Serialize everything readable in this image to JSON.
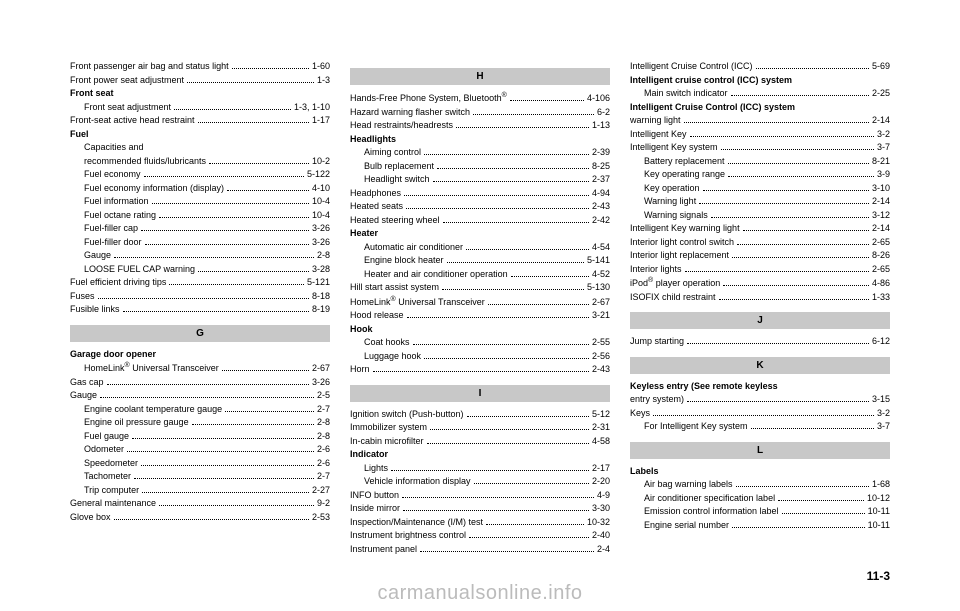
{
  "col1": {
    "topEntries": [
      {
        "label": "Front passenger air bag and status light",
        "page": "1-60"
      },
      {
        "label": "Front power seat adjustment",
        "page": "1-3"
      }
    ],
    "groups": [
      {
        "heading": "Front seat",
        "entries": [
          {
            "label": "Front seat adjustment",
            "page": "1-3, 1-10",
            "indent": true
          }
        ]
      }
    ],
    "afterGroup1": [
      {
        "label": "Front-seat active head restraint",
        "page": "1-17"
      }
    ],
    "fuelGroup": {
      "heading": "Fuel",
      "entries": [
        {
          "label": "Capacities and",
          "page": "",
          "indent": true,
          "noDots": true
        },
        {
          "label": "recommended fluids/lubricants",
          "page": "10-2",
          "indent": true
        },
        {
          "label": "Fuel economy",
          "page": "5-122",
          "indent": true
        },
        {
          "label": "Fuel economy information (display)",
          "page": "4-10",
          "indent": true
        },
        {
          "label": "Fuel information",
          "page": "10-4",
          "indent": true
        },
        {
          "label": "Fuel octane rating",
          "page": "10-4",
          "indent": true
        },
        {
          "label": "Fuel-filler cap",
          "page": "3-26",
          "indent": true
        },
        {
          "label": "Fuel-filler door",
          "page": "3-26",
          "indent": true
        },
        {
          "label": "Gauge",
          "page": "2-8",
          "indent": true
        },
        {
          "label": "LOOSE FUEL CAP warning",
          "page": "3-28",
          "indent": true
        }
      ]
    },
    "afterFuel": [
      {
        "label": "Fuel efficient driving tips",
        "page": "5-121"
      },
      {
        "label": "Fuses",
        "page": "8-18"
      },
      {
        "label": "Fusible links",
        "page": "8-19"
      }
    ],
    "sectionG": "G",
    "garageGroup": {
      "heading": "Garage door opener",
      "entries": [
        {
          "label": "HomeLink® Universal Transceiver",
          "page": "2-67",
          "indent": true
        }
      ]
    },
    "afterGarage": [
      {
        "label": "Gas cap",
        "page": "3-26"
      }
    ],
    "gaugeGroup": {
      "heading": "Gauge",
      "headingPage": "2-5",
      "entries": [
        {
          "label": "Engine coolant temperature gauge",
          "page": "2-7",
          "indent": true
        },
        {
          "label": "Engine oil pressure gauge",
          "page": "2-8",
          "indent": true
        },
        {
          "label": "Fuel gauge",
          "page": "2-8",
          "indent": true
        },
        {
          "label": "Odometer",
          "page": "2-6",
          "indent": true
        },
        {
          "label": "Speedometer",
          "page": "2-6",
          "indent": true
        },
        {
          "label": "Tachometer",
          "page": "2-7",
          "indent": true
        },
        {
          "label": "Trip computer",
          "page": "2-27",
          "indent": true
        }
      ]
    },
    "afterGauge": [
      {
        "label": "General maintenance",
        "page": "9-2"
      },
      {
        "label": "Glove box",
        "page": "2-53"
      }
    ]
  },
  "col2": {
    "sectionH": "H",
    "hTop": [
      {
        "label": "Hands-Free Phone System, Bluetooth®",
        "page": "4-106"
      },
      {
        "label": "Hazard warning flasher switch",
        "page": "6-2"
      },
      {
        "label": "Head restraints/headrests",
        "page": "1-13"
      }
    ],
    "headlightsGroup": {
      "heading": "Headlights",
      "entries": [
        {
          "label": "Aiming control",
          "page": "2-39",
          "indent": true
        },
        {
          "label": "Bulb replacement",
          "page": "8-25",
          "indent": true
        },
        {
          "label": "Headlight switch",
          "page": "2-37",
          "indent": true
        }
      ]
    },
    "afterHeadlights": [
      {
        "label": "Headphones",
        "page": "4-94"
      },
      {
        "label": "Heated seats",
        "page": "2-43"
      },
      {
        "label": "Heated steering wheel",
        "page": "2-42"
      }
    ],
    "heaterGroup": {
      "heading": "Heater",
      "entries": [
        {
          "label": "Automatic air conditioner",
          "page": "4-54",
          "indent": true
        },
        {
          "label": "Engine block heater",
          "page": "5-141",
          "indent": true
        },
        {
          "label": "Heater and air conditioner operation",
          "page": "4-52",
          "indent": true
        }
      ]
    },
    "afterHeater": [
      {
        "label": "Hill start assist system",
        "page": "5-130"
      },
      {
        "label": "HomeLink® Universal Transceiver",
        "page": "2-67"
      },
      {
        "label": "Hood release",
        "page": "3-21"
      }
    ],
    "hookGroup": {
      "heading": "Hook",
      "entries": [
        {
          "label": "Coat hooks",
          "page": "2-55",
          "indent": true
        },
        {
          "label": "Luggage hook",
          "page": "2-56",
          "indent": true
        }
      ]
    },
    "afterHook": [
      {
        "label": "Horn",
        "page": "2-43"
      }
    ],
    "sectionI": "I",
    "iTop": [
      {
        "label": "Ignition switch (Push-button)",
        "page": "5-12"
      },
      {
        "label": "Immobilizer system",
        "page": "2-31"
      },
      {
        "label": "In-cabin microfilter",
        "page": "4-58"
      }
    ],
    "indicatorGroup": {
      "heading": "Indicator",
      "entries": [
        {
          "label": "Lights",
          "page": "2-17",
          "indent": true
        },
        {
          "label": "Vehicle information display",
          "page": "2-20",
          "indent": true
        }
      ]
    },
    "afterIndicator": [
      {
        "label": "INFO button",
        "page": "4-9"
      },
      {
        "label": "Inside mirror",
        "page": "3-30"
      },
      {
        "label": "Inspection/Maintenance (I/M) test",
        "page": "10-32"
      },
      {
        "label": "Instrument brightness control",
        "page": "2-40"
      },
      {
        "label": "Instrument panel",
        "page": "2-4"
      }
    ]
  },
  "col3": {
    "topEntries": [
      {
        "label": "Intelligent Cruise Control (ICC)",
        "page": "5-69"
      }
    ],
    "iccGroup": {
      "heading": "Intelligent cruise control (ICC) system",
      "entries": [
        {
          "label": "Main switch indicator",
          "page": "2-25",
          "indent": true
        }
      ]
    },
    "iccWarnGroup": {
      "heading": "Intelligent Cruise Control (ICC) system",
      "entries": [
        {
          "label": "warning light",
          "page": "2-14"
        }
      ]
    },
    "afterIcc": [
      {
        "label": "Intelligent Key",
        "page": "3-2"
      }
    ],
    "ikeyGroup": {
      "heading": "Intelligent Key system",
      "headingPage": "3-7",
      "entries": [
        {
          "label": "Battery replacement",
          "page": "8-21",
          "indent": true
        },
        {
          "label": "Key operating range",
          "page": "3-9",
          "indent": true
        },
        {
          "label": "Key operation",
          "page": "3-10",
          "indent": true
        },
        {
          "label": "Warning light",
          "page": "2-14",
          "indent": true
        },
        {
          "label": "Warning signals",
          "page": "3-12",
          "indent": true
        }
      ]
    },
    "afterIkey": [
      {
        "label": "Intelligent Key warning light",
        "page": "2-14"
      },
      {
        "label": "Interior light control switch",
        "page": "2-65"
      },
      {
        "label": "Interior light replacement",
        "page": "8-26"
      },
      {
        "label": "Interior lights",
        "page": "2-65"
      },
      {
        "label": "iPod® player operation",
        "page": "4-86"
      },
      {
        "label": "ISOFIX child restraint",
        "page": "1-33"
      }
    ],
    "sectionJ": "J",
    "jEntries": [
      {
        "label": "Jump starting",
        "page": "6-12"
      }
    ],
    "sectionK": "K",
    "kGroup": {
      "heading": "Keyless entry (See remote keyless",
      "entries": [
        {
          "label": "entry system)",
          "page": "3-15"
        }
      ]
    },
    "keysGroup": {
      "heading": "Keys",
      "headingPage": "3-2",
      "entries": [
        {
          "label": "For Intelligent Key system",
          "page": "3-7",
          "indent": true
        }
      ]
    },
    "sectionL": "L",
    "labelsGroup": {
      "heading": "Labels",
      "entries": [
        {
          "label": "Air bag warning labels",
          "page": "1-68",
          "indent": true
        },
        {
          "label": "Air conditioner specification label",
          "page": "10-12",
          "indent": true
        },
        {
          "label": "Emission control information label",
          "page": "10-11",
          "indent": true
        },
        {
          "label": "Engine serial number",
          "page": "10-11",
          "indent": true
        }
      ]
    }
  },
  "pageNum": "11-3",
  "watermark": "carmanualsonline.info"
}
